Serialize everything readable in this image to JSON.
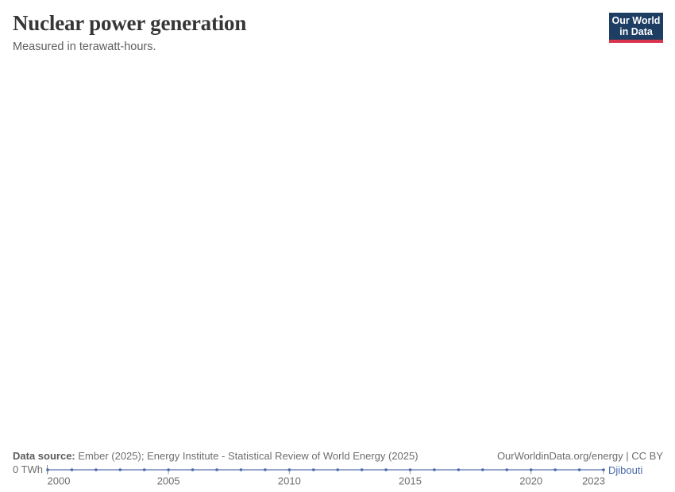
{
  "header": {
    "title": "Nuclear power generation",
    "subtitle": "Measured in terawatt-hours.",
    "logo": {
      "line1": "Our World",
      "line2": "in Data"
    }
  },
  "footer": {
    "source_label": "Data source:",
    "source_text": " Ember (2025); Energy Institute - Statistical Review of World Energy (2025)",
    "license_text": "OurWorldinData.org/energy | CC BY"
  },
  "colors": {
    "line": "#7189bd",
    "marker": "#4a69a8",
    "entity_label": "#4a69a8",
    "axis_text": "#6e6e6e",
    "tick": "#a5a5a5",
    "axis_start_tick": "#8a8a8a",
    "title_text": "#363636",
    "subtitle_text": "#5e5e5e",
    "logo_bg": "#1d3d63",
    "logo_red": "#d9344f"
  },
  "chart_data": {
    "type": "line",
    "title": "Nuclear power generation",
    "subtitle": "Measured in terawatt-hours.",
    "unit": "TWh",
    "x": [
      2000,
      2001,
      2002,
      2003,
      2004,
      2005,
      2006,
      2007,
      2008,
      2009,
      2010,
      2011,
      2012,
      2013,
      2014,
      2015,
      2016,
      2017,
      2018,
      2019,
      2020,
      2021,
      2022,
      2023
    ],
    "series": [
      {
        "name": "Djibouti",
        "values": [
          0,
          0,
          0,
          0,
          0,
          0,
          0,
          0,
          0,
          0,
          0,
          0,
          0,
          0,
          0,
          0,
          0,
          0,
          0,
          0,
          0,
          0,
          0,
          0
        ]
      }
    ],
    "x_ticks": [
      2000,
      2005,
      2010,
      2015,
      2020,
      2023
    ],
    "xlim": [
      2000,
      2023
    ],
    "ylim": [
      0,
      0
    ],
    "y_tick_label": "0 TWh",
    "grid": false,
    "legend": {
      "position": "end-of-line",
      "entries": [
        "Djibouti"
      ]
    }
  }
}
